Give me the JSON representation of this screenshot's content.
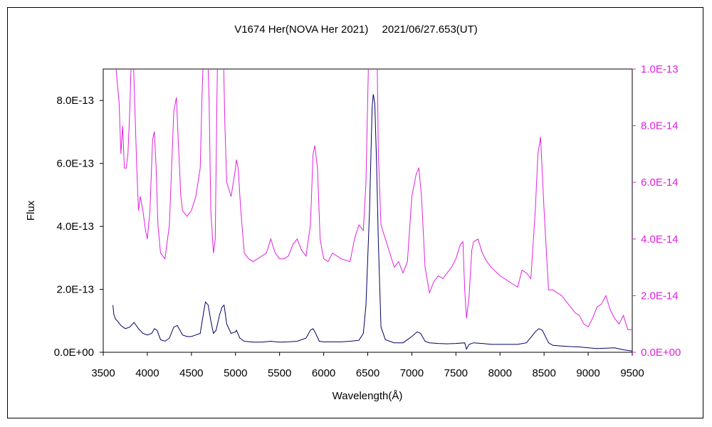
{
  "chart_data": {
    "type": "line",
    "title": "V1674 Her(NOVA Her 2021)　 2021/06/27.653(UT)",
    "xlabel": "Wavelength(Å)",
    "ylabel": "Flux",
    "ylabel_right": "",
    "xlim": [
      3500,
      9500
    ],
    "ylim": [
      0,
      9e-13
    ],
    "ylim_right": [
      0,
      1e-13
    ],
    "x_ticks": [
      "3500",
      "4000",
      "4500",
      "5000",
      "5500",
      "6000",
      "6500",
      "7000",
      "7500",
      "8000",
      "8500",
      "9000",
      "9500"
    ],
    "y_ticks": [
      "0.0E+00",
      "2.0E-13",
      "4.0E-13",
      "6.0E-13",
      "8.0E-13"
    ],
    "y_ticks_right": [
      "0.0E+00",
      "2.0E-14",
      "4.0E-14",
      "6.0E-14",
      "8.0E-14",
      "1.0E-13"
    ],
    "legend": "none",
    "grid": false,
    "colors": {
      "primary": "#000066",
      "secondary": "#e020e0",
      "axis": "#000000"
    },
    "series": [
      {
        "axis": "left",
        "x": [
          3610,
          3620,
          3640,
          3660,
          3700,
          3750,
          3800,
          3850,
          3900,
          3950,
          4000,
          4050,
          4080,
          4110,
          4150,
          4200,
          4250,
          4300,
          4340,
          4370,
          4400,
          4450,
          4500,
          4550,
          4600,
          4640,
          4660,
          4690,
          4720,
          4750,
          4780,
          4820,
          4850,
          4870,
          4900,
          4950,
          5000,
          5010,
          5050,
          5100,
          5200,
          5300,
          5400,
          5500,
          5600,
          5700,
          5800,
          5850,
          5880,
          5910,
          5950,
          6000,
          6100,
          6200,
          6300,
          6400,
          6450,
          6480,
          6520,
          6550,
          6563,
          6580,
          6600,
          6620,
          6650,
          6700,
          6800,
          6900,
          7000,
          7060,
          7100,
          7150,
          7200,
          7300,
          7400,
          7500,
          7600,
          7620,
          7650,
          7700,
          7800,
          7900,
          8000,
          8100,
          8200,
          8300,
          8400,
          8440,
          8480,
          8550,
          8600,
          8700,
          8800,
          8900,
          9000,
          9100,
          9200,
          9300,
          9400,
          9500
        ],
        "y": [
          1.5e-13,
          1.2e-13,
          1.05e-13,
          1e-13,
          8.5e-14,
          7.5e-14,
          8e-14,
          9.5e-14,
          7.5e-14,
          6e-14,
          5.5e-14,
          6e-14,
          7.5e-14,
          7e-14,
          4e-14,
          3.5e-14,
          4.5e-14,
          8e-14,
          8.5e-14,
          7e-14,
          5.5e-14,
          5e-14,
          5e-14,
          5.5e-14,
          6e-14,
          1.3e-13,
          1.6e-13,
          1.5e-13,
          1e-13,
          6e-14,
          7e-14,
          1.2e-13,
          1.45e-13,
          1.5e-13,
          9e-14,
          6e-14,
          6.5e-14,
          7e-14,
          4.5e-14,
          3.5e-14,
          3.2e-14,
          3.2e-14,
          3.5e-14,
          3.2e-14,
          3.3e-14,
          3.5e-14,
          4.5e-14,
          7e-14,
          7.5e-14,
          6e-14,
          3.5e-14,
          3.3e-14,
          3.3e-14,
          3.3e-14,
          3.5e-14,
          3.8e-14,
          6e-14,
          1.5e-13,
          4.5e-13,
          7.8e-13,
          8.2e-13,
          7.9e-13,
          6e-13,
          3.5e-13,
          8e-14,
          4e-14,
          3e-14,
          3e-14,
          5e-14,
          6.5e-14,
          6e-14,
          3.5e-14,
          3e-14,
          2.8e-14,
          2.7e-14,
          2.8e-14,
          3e-14,
          1e-14,
          2.5e-14,
          3e-14,
          2.8e-14,
          2.5e-14,
          2.5e-14,
          2.5e-14,
          2.5e-14,
          3e-14,
          6.5e-14,
          7.5e-14,
          7e-14,
          3e-14,
          2.2e-14,
          2e-14,
          1.8e-14,
          1.7e-14,
          1.4e-14,
          1.2e-14,
          1.3e-14,
          1.4e-14,
          8e-15,
          4e-15
        ]
      },
      {
        "axis": "right",
        "x": [
          3620,
          3640,
          3660,
          3680,
          3700,
          3720,
          3740,
          3760,
          3780,
          3800,
          3820,
          3840,
          3860,
          3880,
          3900,
          3920,
          3950,
          3980,
          4000,
          4030,
          4060,
          4080,
          4100,
          4120,
          4150,
          4200,
          4250,
          4300,
          4330,
          4350,
          4380,
          4400,
          4450,
          4500,
          4550,
          4600,
          4620,
          4650,
          4680,
          4700,
          4720,
          4750,
          4770,
          4790,
          4810,
          4830,
          4860,
          4880,
          4900,
          4950,
          5000,
          5010,
          5030,
          5060,
          5100,
          5150,
          5200,
          5250,
          5300,
          5350,
          5400,
          5450,
          5500,
          5550,
          5600,
          5650,
          5700,
          5750,
          5800,
          5850,
          5880,
          5900,
          5930,
          5960,
          6000,
          6050,
          6100,
          6200,
          6300,
          6350,
          6400,
          6450,
          6480,
          6500,
          6520,
          6600,
          6620,
          6650,
          6700,
          6800,
          6850,
          6900,
          6950,
          7000,
          7050,
          7080,
          7110,
          7150,
          7200,
          7250,
          7300,
          7350,
          7400,
          7450,
          7500,
          7550,
          7580,
          7600,
          7620,
          7650,
          7680,
          7700,
          7750,
          7800,
          7850,
          7900,
          8000,
          8100,
          8150,
          8200,
          8250,
          8300,
          8350,
          8400,
          8430,
          8460,
          8500,
          8550,
          8600,
          8650,
          8700,
          8750,
          8800,
          8850,
          8900,
          8950,
          9000,
          9050,
          9100,
          9150,
          9200,
          9250,
          9300,
          9350,
          9400,
          9450,
          9500
        ],
        "y": [
          1.08e-13,
          1.02e-13,
          9.5e-14,
          8.8e-14,
          7e-14,
          8e-14,
          6.5e-14,
          6.5e-14,
          7e-14,
          8.5e-14,
          1.05e-13,
          1.05e-13,
          8.5e-14,
          6.5e-14,
          5e-14,
          5.5e-14,
          5e-14,
          4.3e-14,
          4e-14,
          5e-14,
          7.5e-14,
          7.8e-14,
          6.5e-14,
          4.5e-14,
          3.5e-14,
          3.3e-14,
          4.5e-14,
          8.5e-14,
          9e-14,
          7.5e-14,
          5.5e-14,
          5e-14,
          4.8e-14,
          5e-14,
          5.5e-14,
          6.5e-14,
          9e-14,
          1.2e-13,
          1.1e-13,
          9e-14,
          5e-14,
          3.5e-14,
          4e-14,
          9e-14,
          1.3e-13,
          1.4e-13,
          1.1e-13,
          8e-14,
          6e-14,
          5.5e-14,
          6.5e-14,
          6.8e-14,
          6.5e-14,
          5e-14,
          3.5e-14,
          3.3e-14,
          3.2e-14,
          3.3e-14,
          3.4e-14,
          3.5e-14,
          4e-14,
          3.5e-14,
          3.3e-14,
          3.3e-14,
          3.4e-14,
          3.8e-14,
          4e-14,
          3.6e-14,
          3.4e-14,
          4.5e-14,
          7e-14,
          7.3e-14,
          6.5e-14,
          4e-14,
          3.3e-14,
          3.2e-14,
          3.5e-14,
          3.3e-14,
          3.2e-14,
          4e-14,
          4.5e-14,
          4.3e-14,
          6e-14,
          9e-14,
          1.2e-13,
          1.2e-13,
          7e-14,
          4.5e-14,
          4e-14,
          3e-14,
          3.2e-14,
          2.8e-14,
          3.2e-14,
          5.5e-14,
          6.3e-14,
          6.5e-14,
          5.5e-14,
          3e-14,
          2.1e-14,
          2.5e-14,
          2.7e-14,
          2.6e-14,
          2.8e-14,
          3e-14,
          3.3e-14,
          3.8e-14,
          3.9e-14,
          2.2e-14,
          1.2e-14,
          2e-14,
          3.6e-14,
          3.9e-14,
          4e-14,
          3.5e-14,
          3.2e-14,
          3e-14,
          2.7e-14,
          2.5e-14,
          2.4e-14,
          2.3e-14,
          2.9e-14,
          2.8e-14,
          2.6e-14,
          5e-14,
          7e-14,
          7.6e-14,
          5e-14,
          2.2e-14,
          2.2e-14,
          2.1e-14,
          2e-14,
          1.8e-14,
          1.6e-14,
          1.4e-14,
          1.3e-14,
          1e-14,
          9e-15,
          1.2e-14,
          1.6e-14,
          1.7e-14,
          2e-14,
          1.5e-14,
          1.2e-14,
          1e-14,
          1.3e-14,
          8e-15,
          8e-15
        ]
      }
    ]
  }
}
